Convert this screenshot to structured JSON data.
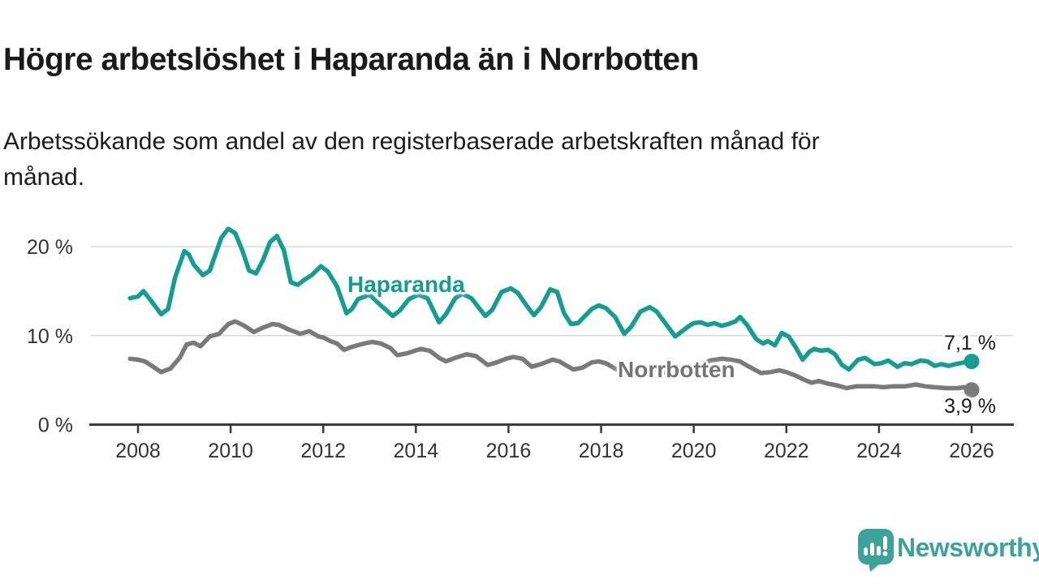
{
  "header": {
    "title": "Högre arbetslöshet i Haparanda än i Norrbotten",
    "subtitle": "Arbetssökande som andel av den registerbaserade arbetskraften månad för\nmånad."
  },
  "footer": {
    "brand": "Newsworthy",
    "logo_color": "#3ba49a",
    "logo_icon": "speech-bubble-bar-chart"
  },
  "colors": {
    "haparanda": "#169d91",
    "norrbotten": "#7a7a7a",
    "axis": "#3a3a3a",
    "grid": "#dcdcdc",
    "tick_text": "#333333"
  },
  "chart_data": {
    "type": "line",
    "title": "Högre arbetslöshet i Haparanda än i Norrbotten",
    "xlabel": "",
    "ylabel": "",
    "unit": "%",
    "x_range": [
      2007.83,
      2026
    ],
    "y_range": [
      0,
      22.5
    ],
    "gridlines": [
      10,
      20
    ],
    "legend_position": "inline-labels",
    "x_axis": {
      "ticks": [
        2008,
        2010,
        2012,
        2014,
        2016,
        2018,
        2020,
        2022,
        2024,
        2026
      ]
    },
    "y_axis": {
      "ticks": [
        {
          "value": 0,
          "label": "0 %"
        },
        {
          "value": 10,
          "label": "10 %"
        },
        {
          "value": 20,
          "label": "20 %"
        }
      ]
    },
    "series": [
      {
        "name": "Haparanda",
        "color": "#169d91",
        "end_value": 7.1,
        "end_label": "7,1 %",
        "end_dot": true,
        "points": [
          [
            2007.83,
            14.2
          ],
          [
            2008.0,
            14.4
          ],
          [
            2008.12,
            15.0
          ],
          [
            2008.3,
            13.8
          ],
          [
            2008.5,
            12.4
          ],
          [
            2008.65,
            13.0
          ],
          [
            2008.8,
            16.5
          ],
          [
            2009.0,
            19.5
          ],
          [
            2009.1,
            19.1
          ],
          [
            2009.2,
            18.0
          ],
          [
            2009.4,
            16.8
          ],
          [
            2009.55,
            17.3
          ],
          [
            2009.8,
            21.0
          ],
          [
            2009.95,
            22.0
          ],
          [
            2010.1,
            21.5
          ],
          [
            2010.25,
            19.6
          ],
          [
            2010.4,
            17.3
          ],
          [
            2010.55,
            17.0
          ],
          [
            2010.7,
            18.5
          ],
          [
            2010.85,
            20.5
          ],
          [
            2011.0,
            21.2
          ],
          [
            2011.15,
            19.6
          ],
          [
            2011.3,
            16.0
          ],
          [
            2011.45,
            15.7
          ],
          [
            2011.6,
            16.3
          ],
          [
            2011.75,
            16.8
          ],
          [
            2011.95,
            17.8
          ],
          [
            2012.1,
            17.2
          ],
          [
            2012.3,
            15.5
          ],
          [
            2012.5,
            12.5
          ],
          [
            2012.62,
            13.0
          ],
          [
            2012.75,
            14.1
          ],
          [
            2013.0,
            14.6
          ],
          [
            2013.2,
            13.6
          ],
          [
            2013.5,
            12.2
          ],
          [
            2013.65,
            12.8
          ],
          [
            2013.85,
            14.1
          ],
          [
            2014.05,
            14.6
          ],
          [
            2014.25,
            14.2
          ],
          [
            2014.5,
            11.5
          ],
          [
            2014.65,
            12.4
          ],
          [
            2014.85,
            14.2
          ],
          [
            2015.0,
            14.7
          ],
          [
            2015.2,
            14.2
          ],
          [
            2015.5,
            12.2
          ],
          [
            2015.65,
            12.9
          ],
          [
            2015.85,
            14.9
          ],
          [
            2016.05,
            15.3
          ],
          [
            2016.2,
            14.8
          ],
          [
            2016.4,
            13.3
          ],
          [
            2016.55,
            12.3
          ],
          [
            2016.7,
            13.2
          ],
          [
            2016.9,
            15.2
          ],
          [
            2017.05,
            14.9
          ],
          [
            2017.2,
            12.5
          ],
          [
            2017.35,
            11.3
          ],
          [
            2017.5,
            11.4
          ],
          [
            2017.65,
            12.2
          ],
          [
            2017.8,
            13.0
          ],
          [
            2017.95,
            13.4
          ],
          [
            2018.1,
            13.1
          ],
          [
            2018.3,
            12.1
          ],
          [
            2018.5,
            10.2
          ],
          [
            2018.65,
            11.0
          ],
          [
            2018.85,
            12.7
          ],
          [
            2019.05,
            13.2
          ],
          [
            2019.2,
            12.7
          ],
          [
            2019.4,
            11.3
          ],
          [
            2019.6,
            9.9
          ],
          [
            2019.75,
            10.5
          ],
          [
            2019.9,
            11.1
          ],
          [
            2020.0,
            11.4
          ],
          [
            2020.15,
            11.5
          ],
          [
            2020.3,
            11.2
          ],
          [
            2020.45,
            11.4
          ],
          [
            2020.6,
            11.1
          ],
          [
            2020.75,
            11.3
          ],
          [
            2020.9,
            11.6
          ],
          [
            2021.0,
            12.1
          ],
          [
            2021.15,
            11.2
          ],
          [
            2021.35,
            9.6
          ],
          [
            2021.5,
            9.1
          ],
          [
            2021.6,
            9.4
          ],
          [
            2021.75,
            8.9
          ],
          [
            2021.9,
            10.3
          ],
          [
            2022.05,
            9.9
          ],
          [
            2022.2,
            8.7
          ],
          [
            2022.35,
            7.3
          ],
          [
            2022.5,
            8.2
          ],
          [
            2022.6,
            8.5
          ],
          [
            2022.75,
            8.3
          ],
          [
            2022.9,
            8.4
          ],
          [
            2023.05,
            7.9
          ],
          [
            2023.2,
            6.7
          ],
          [
            2023.35,
            6.2
          ],
          [
            2023.55,
            7.3
          ],
          [
            2023.7,
            7.5
          ],
          [
            2023.9,
            6.8
          ],
          [
            2024.05,
            6.9
          ],
          [
            2024.2,
            7.2
          ],
          [
            2024.4,
            6.5
          ],
          [
            2024.55,
            6.9
          ],
          [
            2024.7,
            6.8
          ],
          [
            2024.9,
            7.2
          ],
          [
            2025.05,
            7.1
          ],
          [
            2025.2,
            6.6
          ],
          [
            2025.35,
            6.8
          ],
          [
            2025.5,
            6.6
          ],
          [
            2025.65,
            6.8
          ],
          [
            2025.85,
            7.0
          ],
          [
            2026.0,
            7.1
          ]
        ]
      },
      {
        "name": "Norrbotten",
        "color": "#7a7a7a",
        "end_value": 3.9,
        "end_label": "3,9 %",
        "end_dot": true,
        "points": [
          [
            2007.83,
            7.4
          ],
          [
            2008.0,
            7.3
          ],
          [
            2008.15,
            7.1
          ],
          [
            2008.3,
            6.6
          ],
          [
            2008.5,
            5.9
          ],
          [
            2008.7,
            6.3
          ],
          [
            2008.9,
            7.5
          ],
          [
            2009.05,
            9.0
          ],
          [
            2009.2,
            9.2
          ],
          [
            2009.35,
            8.8
          ],
          [
            2009.55,
            9.9
          ],
          [
            2009.75,
            10.2
          ],
          [
            2009.95,
            11.3
          ],
          [
            2010.1,
            11.6
          ],
          [
            2010.3,
            11.1
          ],
          [
            2010.5,
            10.4
          ],
          [
            2010.7,
            10.9
          ],
          [
            2010.9,
            11.3
          ],
          [
            2011.05,
            11.2
          ],
          [
            2011.25,
            10.7
          ],
          [
            2011.5,
            10.2
          ],
          [
            2011.7,
            10.5
          ],
          [
            2011.9,
            9.9
          ],
          [
            2012.0,
            9.8
          ],
          [
            2012.15,
            9.4
          ],
          [
            2012.3,
            9.1
          ],
          [
            2012.45,
            8.4
          ],
          [
            2012.6,
            8.7
          ],
          [
            2012.8,
            9.0
          ],
          [
            2013.05,
            9.3
          ],
          [
            2013.25,
            9.1
          ],
          [
            2013.45,
            8.6
          ],
          [
            2013.6,
            7.8
          ],
          [
            2013.8,
            8.0
          ],
          [
            2014.1,
            8.5
          ],
          [
            2014.3,
            8.3
          ],
          [
            2014.5,
            7.5
          ],
          [
            2014.65,
            7.1
          ],
          [
            2014.85,
            7.5
          ],
          [
            2015.1,
            7.9
          ],
          [
            2015.3,
            7.7
          ],
          [
            2015.55,
            6.7
          ],
          [
            2015.75,
            7.0
          ],
          [
            2015.95,
            7.4
          ],
          [
            2016.1,
            7.6
          ],
          [
            2016.3,
            7.4
          ],
          [
            2016.5,
            6.5
          ],
          [
            2016.7,
            6.8
          ],
          [
            2016.95,
            7.3
          ],
          [
            2017.1,
            7.1
          ],
          [
            2017.4,
            6.2
          ],
          [
            2017.6,
            6.4
          ],
          [
            2017.8,
            7.0
          ],
          [
            2017.95,
            7.1
          ],
          [
            2018.1,
            6.9
          ],
          [
            2018.3,
            6.3
          ],
          [
            2018.5,
            5.8
          ],
          [
            2018.7,
            6.0
          ],
          [
            2018.9,
            6.3
          ],
          [
            2019.05,
            6.4
          ],
          [
            2019.25,
            6.1
          ],
          [
            2019.5,
            5.6
          ],
          [
            2019.7,
            5.8
          ],
          [
            2019.9,
            6.1
          ],
          [
            2020.1,
            6.5
          ],
          [
            2020.35,
            7.2
          ],
          [
            2020.6,
            7.4
          ],
          [
            2020.8,
            7.3
          ],
          [
            2021.0,
            7.1
          ],
          [
            2021.2,
            6.5
          ],
          [
            2021.45,
            5.8
          ],
          [
            2021.65,
            5.9
          ],
          [
            2021.85,
            6.1
          ],
          [
            2022.0,
            5.9
          ],
          [
            2022.2,
            5.5
          ],
          [
            2022.4,
            5.0
          ],
          [
            2022.55,
            4.7
          ],
          [
            2022.7,
            4.9
          ],
          [
            2022.9,
            4.6
          ],
          [
            2023.1,
            4.4
          ],
          [
            2023.3,
            4.1
          ],
          [
            2023.5,
            4.3
          ],
          [
            2023.7,
            4.3
          ],
          [
            2023.9,
            4.3
          ],
          [
            2024.1,
            4.2
          ],
          [
            2024.3,
            4.3
          ],
          [
            2024.55,
            4.3
          ],
          [
            2024.8,
            4.5
          ],
          [
            2025.0,
            4.3
          ],
          [
            2025.2,
            4.2
          ],
          [
            2025.45,
            4.1
          ],
          [
            2025.7,
            4.1
          ],
          [
            2025.85,
            4.2
          ],
          [
            2026.0,
            3.9
          ]
        ]
      }
    ]
  }
}
